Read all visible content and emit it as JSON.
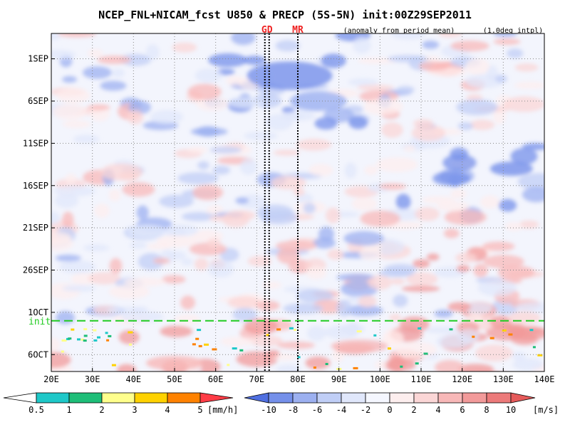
{
  "chart_data": {
    "type": "heatmap",
    "title": "NCEP_FNL+NICAM_fcst U850 & PRECP (5S-5N) init:00Z29SEP2011",
    "subtitle": "(anomaly from period mean)",
    "note": "(1.0deg intpl)",
    "x_ticks": [
      "20E",
      "30E",
      "40E",
      "50E",
      "60E",
      "70E",
      "80E",
      "90E",
      "100E",
      "110E",
      "120E",
      "130E",
      "140E"
    ],
    "y_ticks": [
      "1SEP",
      "6SEP",
      "11SEP",
      "16SEP",
      "21SEP",
      "26SEP",
      "1OCT",
      "6OCT"
    ],
    "xlim": [
      20,
      140
    ],
    "ylim_days": [
      -3,
      37
    ],
    "y_origin": "29AUG2011",
    "markers": [
      {
        "label": "GD",
        "lon": 72.5
      },
      {
        "label": "MR",
        "lon": 80
      }
    ],
    "init_line": {
      "label": "init",
      "date": "29SEP2011"
    },
    "precip_legend": {
      "labels": [
        "0.5",
        "1",
        "2",
        "3",
        "4",
        "5"
      ],
      "unit": "[mm/h]",
      "colors": [
        "#ffffff",
        "#1ec8c8",
        "#1ebe78",
        "#ffff8c",
        "#ffd200",
        "#ff8200",
        "#ff3c46"
      ]
    },
    "u850_legend": {
      "labels": [
        "-10",
        "-8",
        "-6",
        "-4",
        "-2",
        "0",
        "2",
        "4",
        "6",
        "8",
        "10"
      ],
      "unit": "[m/s]",
      "colors": [
        "#4f6fe0",
        "#7590ea",
        "#9cb0f0",
        "#c0cef6",
        "#e0e7fb",
        "#f5f7ff",
        "#fdeeee",
        "#fbd6d6",
        "#f8b8b8",
        "#f29a9a",
        "#ec7a7a",
        "#e55a5a"
      ]
    }
  }
}
